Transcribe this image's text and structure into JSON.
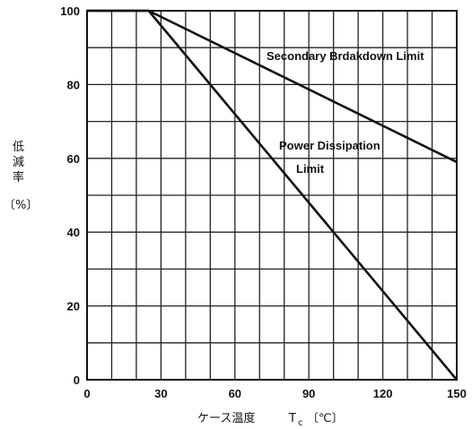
{
  "chart_data": {
    "type": "line",
    "x_ticks": [
      "0",
      "30",
      "60",
      "90",
      "120",
      "150"
    ],
    "y_ticks": [
      "0",
      "20",
      "40",
      "60",
      "80",
      "100"
    ],
    "xlim": [
      0,
      150
    ],
    "ylim": [
      0,
      100
    ],
    "xlabel_main": "ケース温度",
    "xlabel_symbol": "T",
    "xlabel_sub": "c",
    "xlabel_unit": "〔℃〕",
    "ylabel_chars": [
      "低",
      "減",
      "率"
    ],
    "ylabel_unit": "〔%〕",
    "grid": true,
    "series": [
      {
        "points": [
          [
            0,
            100
          ],
          [
            25,
            100
          ],
          [
            150,
            59
          ]
        ]
      },
      {
        "points": [
          [
            0,
            100
          ],
          [
            25,
            100
          ],
          [
            150,
            0
          ]
        ]
      }
    ],
    "annotations": {
      "secondary": "Secondary Brdakdown Limit",
      "power_line1": "Power Dissipation",
      "power_line2": "Limit"
    }
  }
}
